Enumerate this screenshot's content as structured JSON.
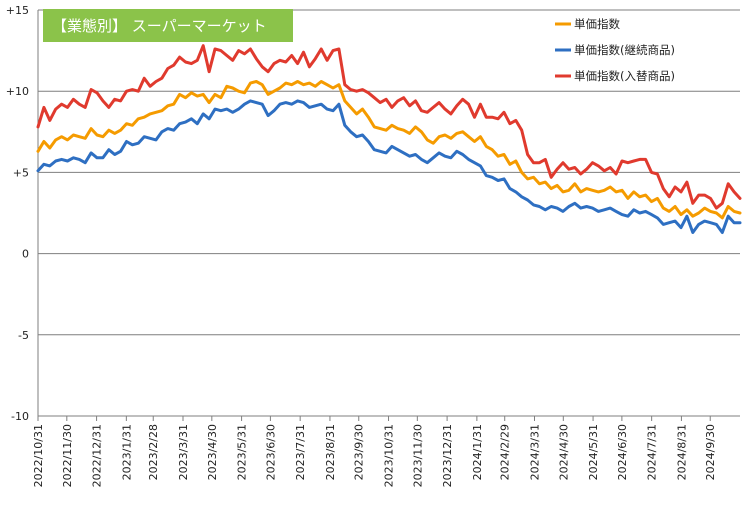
{
  "chart_data": {
    "type": "line",
    "title": "【業態別】 スーパーマーケット",
    "ylim": [
      -10,
      15
    ],
    "y_ticks": [
      "+15",
      "+10",
      "+5",
      "0",
      "-5",
      "-10"
    ],
    "y_tick_values": [
      15,
      10,
      5,
      0,
      -5,
      -10
    ],
    "x_start": "2022-10-31",
    "x_end": "2024-10-31",
    "x_ticks": [
      "2022/10/31",
      "2022/11/30",
      "2022/12/31",
      "2023/1/31",
      "2023/2/28",
      "2023/3/31",
      "2023/4/30",
      "2023/5/31",
      "2023/6/30",
      "2023/7/31",
      "2023/8/31",
      "2023/9/30",
      "2023/10/31",
      "2023/11/30",
      "2023/12/31",
      "2024/1/31",
      "2024/2/29",
      "2024/3/31",
      "2024/4/30",
      "2024/5/31",
      "2024/6/30",
      "2024/7/31",
      "2024/8/31",
      "2024/9/30"
    ],
    "grid": "horizontal",
    "legend_position": "top-right",
    "colors": {
      "title_box": "#8bc34a",
      "grid": "#7f7f7f"
    },
    "series": [
      {
        "name": "単価指数",
        "color": "#f59b00",
        "values": [
          6.3,
          6.9,
          6.5,
          7.0,
          7.2,
          7.0,
          7.3,
          7.2,
          7.1,
          7.7,
          7.3,
          7.2,
          7.6,
          7.4,
          7.6,
          8.0,
          7.9,
          8.3,
          8.4,
          8.6,
          8.7,
          8.8,
          9.1,
          9.2,
          9.8,
          9.6,
          9.9,
          9.7,
          9.8,
          9.3,
          9.8,
          9.6,
          10.3,
          10.2,
          10.0,
          9.9,
          10.5,
          10.6,
          10.4,
          9.8,
          10.0,
          10.2,
          10.5,
          10.4,
          10.6,
          10.4,
          10.5,
          10.3,
          10.6,
          10.4,
          10.2,
          10.4,
          9.4,
          9.0,
          8.6,
          8.9,
          8.4,
          7.8,
          7.7,
          7.6,
          7.9,
          7.7,
          7.6,
          7.4,
          7.8,
          7.5,
          7.0,
          6.8,
          7.2,
          7.3,
          7.1,
          7.4,
          7.5,
          7.2,
          6.9,
          7.2,
          6.6,
          6.4,
          6.0,
          6.1,
          5.5,
          5.7,
          5.0,
          4.6,
          4.7,
          4.3,
          4.4,
          4.0,
          4.2,
          3.8,
          3.9,
          4.3,
          3.8,
          4.0,
          3.9,
          3.8,
          3.9,
          4.1,
          3.8,
          3.9,
          3.4,
          3.8,
          3.5,
          3.6,
          3.2,
          3.4,
          2.8,
          2.6,
          2.9,
          2.4,
          2.7,
          2.3,
          2.5,
          2.8,
          2.6,
          2.5,
          2.2,
          2.9,
          2.6,
          2.5
        ]
      },
      {
        "name": "単価指数(継続商品)",
        "color": "#2e6fc2",
        "values": [
          5.1,
          5.5,
          5.4,
          5.7,
          5.8,
          5.7,
          5.9,
          5.8,
          5.6,
          6.2,
          5.9,
          5.9,
          6.4,
          6.1,
          6.3,
          6.9,
          6.7,
          6.8,
          7.2,
          7.1,
          7.0,
          7.5,
          7.7,
          7.6,
          8.0,
          8.1,
          8.3,
          8.0,
          8.6,
          8.3,
          8.9,
          8.8,
          8.9,
          8.7,
          8.9,
          9.2,
          9.4,
          9.3,
          9.2,
          8.5,
          8.8,
          9.2,
          9.3,
          9.2,
          9.4,
          9.3,
          9.0,
          9.1,
          9.2,
          8.9,
          8.8,
          9.2,
          7.9,
          7.5,
          7.2,
          7.3,
          6.9,
          6.4,
          6.3,
          6.2,
          6.6,
          6.4,
          6.2,
          6.0,
          6.1,
          5.8,
          5.6,
          5.9,
          6.2,
          6.0,
          5.9,
          6.3,
          6.1,
          5.8,
          5.6,
          5.4,
          4.8,
          4.7,
          4.5,
          4.6,
          4.0,
          3.8,
          3.5,
          3.3,
          3.0,
          2.9,
          2.7,
          2.9,
          2.8,
          2.6,
          2.9,
          3.1,
          2.8,
          2.9,
          2.8,
          2.6,
          2.7,
          2.8,
          2.6,
          2.4,
          2.3,
          2.7,
          2.5,
          2.6,
          2.4,
          2.2,
          1.8,
          1.9,
          2.0,
          1.6,
          2.3,
          1.3,
          1.8,
          2.0,
          1.9,
          1.8,
          1.3,
          2.3,
          1.9,
          1.9
        ]
      },
      {
        "name": "単価指数(入替商品)",
        "color": "#e03a2e",
        "values": [
          7.8,
          9.0,
          8.2,
          8.9,
          9.2,
          9.0,
          9.5,
          9.2,
          9.0,
          10.1,
          9.9,
          9.4,
          9.0,
          9.5,
          9.4,
          10.0,
          10.1,
          10.0,
          10.8,
          10.3,
          10.6,
          10.8,
          11.4,
          11.6,
          12.1,
          11.8,
          11.7,
          11.9,
          12.8,
          11.2,
          12.6,
          12.5,
          12.2,
          11.9,
          12.5,
          12.3,
          12.6,
          12.0,
          11.5,
          11.2,
          11.7,
          11.9,
          11.8,
          12.2,
          11.7,
          12.4,
          11.5,
          12.0,
          12.6,
          11.9,
          12.5,
          12.6,
          10.4,
          10.1,
          10.0,
          10.1,
          9.9,
          9.6,
          9.3,
          9.5,
          9.0,
          9.4,
          9.6,
          9.1,
          9.4,
          8.8,
          8.7,
          9.0,
          9.3,
          8.9,
          8.6,
          9.1,
          9.5,
          9.2,
          8.4,
          9.2,
          8.4,
          8.4,
          8.3,
          8.7,
          8.0,
          8.2,
          7.6,
          6.1,
          5.6,
          5.6,
          5.8,
          4.7,
          5.2,
          5.6,
          5.2,
          5.3,
          4.9,
          5.2,
          5.6,
          5.4,
          5.1,
          5.3,
          4.9,
          5.7,
          5.6,
          5.7,
          5.8,
          5.8,
          5.0,
          4.9,
          4.0,
          3.5,
          4.1,
          3.8,
          4.4,
          3.1,
          3.6,
          3.6,
          3.4,
          2.8,
          3.1,
          4.3,
          3.8,
          3.4
        ]
      }
    ]
  }
}
